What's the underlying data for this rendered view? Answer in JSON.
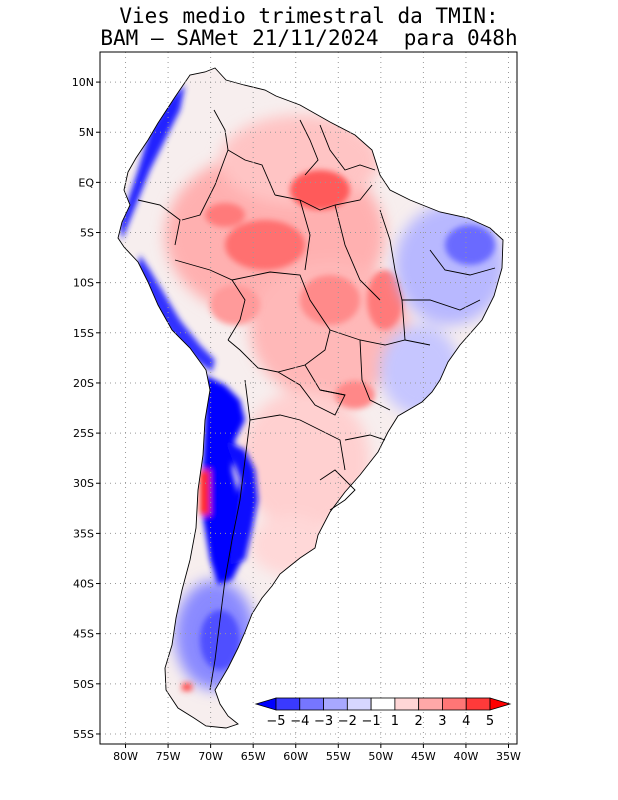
{
  "title": {
    "line1": "Vies medio trimestral da TMIN:",
    "line2": "BAM – SAMet 21/11/2024  para 048h"
  },
  "map": {
    "lon_range": [
      -83,
      -34
    ],
    "lat_range": [
      -56,
      13
    ],
    "lat_ticks": [
      {
        "value": 10,
        "label": "10N"
      },
      {
        "value": 5,
        "label": "5N"
      },
      {
        "value": 0,
        "label": "EQ"
      },
      {
        "value": -5,
        "label": "5S"
      },
      {
        "value": -10,
        "label": "10S"
      },
      {
        "value": -15,
        "label": "15S"
      },
      {
        "value": -20,
        "label": "20S"
      },
      {
        "value": -25,
        "label": "25S"
      },
      {
        "value": -30,
        "label": "30S"
      },
      {
        "value": -35,
        "label": "35S"
      },
      {
        "value": -40,
        "label": "40S"
      },
      {
        "value": -45,
        "label": "45S"
      },
      {
        "value": -50,
        "label": "50S"
      },
      {
        "value": -55,
        "label": "55S"
      }
    ],
    "lon_ticks": [
      {
        "value": -80,
        "label": "80W"
      },
      {
        "value": -75,
        "label": "75W"
      },
      {
        "value": -70,
        "label": "70W"
      },
      {
        "value": -65,
        "label": "65W"
      },
      {
        "value": -60,
        "label": "60W"
      },
      {
        "value": -55,
        "label": "55W"
      },
      {
        "value": -50,
        "label": "50W"
      },
      {
        "value": -45,
        "label": "45W"
      },
      {
        "value": -40,
        "label": "40W"
      },
      {
        "value": -35,
        "label": "35W"
      }
    ],
    "grid": "dotted"
  },
  "colorbar": {
    "labels": [
      "−5",
      "−4",
      "−3",
      "−2",
      "−1",
      "1",
      "2",
      "3",
      "4",
      "5"
    ],
    "colors": [
      "#0000ff",
      "#3a3aff",
      "#7676ff",
      "#a8a8ff",
      "#d6d6ff",
      "#ffffff",
      "#ffd6d6",
      "#ffa8a8",
      "#ff7676",
      "#ff3a3a",
      "#ff0000"
    ]
  },
  "colors": {
    "land_neutral": "#f7f2f2",
    "border": "#000000"
  }
}
